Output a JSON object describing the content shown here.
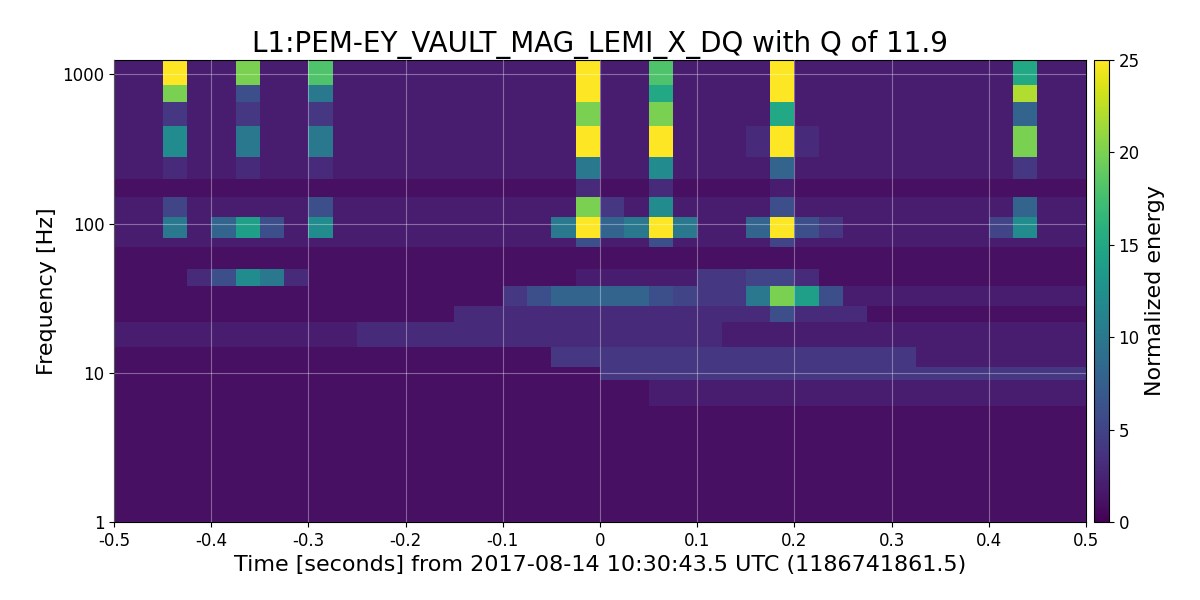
{
  "chart_data": {
    "type": "heatmap",
    "title": "L1:PEM-EY_VAULT_MAG_LEMI_X_DQ with Q of 11.9",
    "x_label": "Time [seconds] from 2017-08-14 10:30:43.5 UTC (1186741861.5)",
    "y_label": "Frequency [Hz]",
    "log": "y",
    "grid": true,
    "color": "viridis",
    "xlim": [
      -0.5,
      0.5
    ],
    "xticks": [
      -0.5,
      -0.4,
      -0.3,
      -0.2,
      -0.1,
      0,
      0.1,
      0.2,
      0.3,
      0.4,
      0.5
    ],
    "ylim": [
      1,
      1250
    ],
    "yticks": [
      1,
      10,
      100,
      1000
    ],
    "color_label": "Normalized energy",
    "color_range": [
      0,
      25
    ],
    "color_ticks": [
      0,
      5,
      10,
      15,
      20,
      25
    ],
    "x_edges": [
      -0.5,
      -0.475,
      -0.45,
      -0.425,
      -0.4,
      -0.375,
      -0.35,
      -0.325,
      -0.3,
      -0.275,
      -0.25,
      -0.225,
      -0.2,
      -0.175,
      -0.15,
      -0.125,
      -0.1,
      -0.075,
      -0.05,
      -0.025,
      0,
      0.025,
      0.05,
      0.075,
      0.1,
      0.125,
      0.15,
      0.175,
      0.2,
      0.225,
      0.25,
      0.275,
      0.3,
      0.325,
      0.35,
      0.375,
      0.4,
      0.425,
      0.45,
      0.475,
      0.5
    ],
    "y_edges": [
      1,
      3,
      6,
      9,
      11,
      15,
      22,
      28,
      38,
      50,
      70,
      80,
      110,
      150,
      200,
      280,
      450,
      650,
      850,
      1250
    ],
    "cells": [
      [
        1,
        1,
        1,
        1,
        1,
        1,
        1,
        1,
        1,
        1,
        1,
        1,
        1,
        1,
        1,
        1,
        1,
        1,
        1,
        1,
        1,
        1,
        1,
        1,
        1,
        1,
        1,
        1,
        1,
        1,
        1,
        1,
        1,
        1,
        1,
        1,
        1,
        1,
        1,
        1
      ],
      [
        1,
        1,
        1,
        1,
        1,
        1,
        1,
        1,
        1,
        1,
        1,
        1,
        1,
        1,
        1,
        1,
        1,
        1,
        1,
        1,
        1,
        1,
        1,
        1,
        1,
        1,
        1,
        1,
        1,
        1,
        1,
        1,
        1,
        1,
        1,
        1,
        1,
        1,
        1,
        1
      ],
      [
        1,
        1,
        1,
        1,
        1,
        1,
        1,
        1,
        1,
        1,
        1,
        1,
        1,
        1,
        1,
        1,
        1,
        1,
        1,
        1,
        1,
        1,
        2,
        2,
        2,
        2,
        2,
        2,
        2,
        2,
        2,
        2,
        2,
        2,
        2,
        2,
        2,
        2,
        2,
        2
      ],
      [
        1,
        1,
        1,
        1,
        1,
        1,
        1,
        1,
        1,
        1,
        1,
        1,
        1,
        1,
        1,
        1,
        1,
        1,
        1,
        1,
        4,
        4,
        4,
        4,
        4,
        4,
        4,
        4,
        4,
        4,
        4,
        4,
        4,
        4,
        4,
        4,
        4,
        4,
        4,
        4
      ],
      [
        1,
        1,
        1,
        1,
        1,
        1,
        1,
        1,
        1,
        1,
        1,
        1,
        1,
        1,
        1,
        1,
        1,
        1,
        4,
        4,
        4,
        4,
        4,
        4,
        4,
        4,
        4,
        4,
        4,
        4,
        4,
        4,
        4,
        2,
        2,
        2,
        2,
        2,
        2,
        2
      ],
      [
        2,
        2,
        2,
        2,
        2,
        2,
        2,
        2,
        2,
        2,
        3,
        3,
        3,
        3,
        3,
        3,
        3,
        3,
        3,
        3,
        3,
        3,
        3,
        3,
        3,
        2,
        2,
        2,
        2,
        2,
        2,
        2,
        2,
        2,
        2,
        2,
        2,
        2,
        2,
        2
      ],
      [
        1,
        1,
        1,
        1,
        1,
        1,
        1,
        1,
        1,
        1,
        1,
        1,
        1,
        1,
        3,
        3,
        3,
        3,
        3,
        3,
        3,
        3,
        3,
        3,
        3,
        3,
        3,
        6,
        3,
        3,
        3,
        1,
        1,
        1,
        1,
        1,
        1,
        1,
        1,
        1
      ],
      [
        1,
        1,
        1,
        1,
        1,
        1,
        1,
        1,
        1,
        1,
        1,
        1,
        1,
        1,
        1,
        1,
        4,
        6,
        8,
        8,
        8,
        8,
        6,
        5,
        4,
        4,
        10,
        20,
        14,
        6,
        2,
        2,
        2,
        2,
        2,
        2,
        2,
        2,
        2,
        2
      ],
      [
        1,
        1,
        1,
        3,
        6,
        12,
        10,
        3,
        1,
        1,
        1,
        1,
        1,
        1,
        1,
        1,
        1,
        1,
        1,
        2,
        2,
        2,
        2,
        2,
        4,
        4,
        5,
        5,
        3,
        1,
        1,
        1,
        1,
        1,
        1,
        1,
        1,
        1,
        1,
        1
      ],
      [
        1,
        1,
        1,
        1,
        1,
        1,
        1,
        1,
        1,
        1,
        1,
        1,
        1,
        1,
        1,
        1,
        1,
        1,
        1,
        1,
        1,
        1,
        1,
        1,
        1,
        1,
        1,
        1,
        1,
        1,
        1,
        1,
        1,
        1,
        1,
        1,
        1,
        1,
        1,
        1
      ],
      [
        2,
        2,
        2,
        2,
        2,
        2,
        2,
        2,
        2,
        2,
        2,
        2,
        2,
        2,
        2,
        2,
        2,
        2,
        2,
        6,
        2,
        2,
        6,
        2,
        2,
        2,
        2,
        5,
        2,
        2,
        2,
        2,
        2,
        2,
        2,
        2,
        2,
        2,
        2,
        2
      ],
      [
        2,
        2,
        10,
        2,
        8,
        14,
        6,
        2,
        12,
        2,
        2,
        2,
        2,
        2,
        2,
        2,
        2,
        2,
        10,
        25,
        8,
        10,
        25,
        10,
        2,
        2,
        8,
        25,
        6,
        4,
        2,
        2,
        2,
        2,
        2,
        2,
        5,
        12,
        2,
        2
      ],
      [
        2,
        2,
        5,
        2,
        2,
        2,
        2,
        2,
        6,
        2,
        2,
        2,
        2,
        2,
        2,
        2,
        2,
        2,
        2,
        20,
        4,
        2,
        12,
        2,
        2,
        2,
        2,
        6,
        2,
        2,
        2,
        2,
        2,
        2,
        2,
        2,
        2,
        8,
        2,
        2
      ],
      [
        1,
        1,
        1,
        1,
        1,
        1,
        1,
        1,
        1,
        1,
        1,
        1,
        1,
        1,
        1,
        1,
        1,
        1,
        1,
        3,
        1,
        1,
        3,
        1,
        1,
        1,
        1,
        2,
        1,
        1,
        1,
        1,
        1,
        1,
        1,
        1,
        1,
        1,
        1,
        1
      ],
      [
        2,
        2,
        3,
        2,
        2,
        3,
        2,
        2,
        3,
        2,
        2,
        2,
        2,
        2,
        2,
        2,
        2,
        2,
        2,
        10,
        2,
        2,
        12,
        2,
        2,
        2,
        2,
        8,
        2,
        2,
        2,
        2,
        2,
        2,
        2,
        2,
        2,
        4,
        2,
        2
      ],
      [
        2,
        2,
        12,
        2,
        2,
        10,
        2,
        2,
        10,
        2,
        2,
        2,
        2,
        2,
        2,
        2,
        2,
        2,
        2,
        25,
        2,
        2,
        25,
        2,
        2,
        2,
        3,
        25,
        3,
        2,
        2,
        2,
        2,
        2,
        2,
        2,
        2,
        20,
        2,
        2
      ],
      [
        2,
        2,
        4,
        2,
        2,
        4,
        2,
        2,
        4,
        2,
        2,
        2,
        2,
        2,
        2,
        2,
        2,
        2,
        2,
        20,
        2,
        2,
        20,
        2,
        2,
        2,
        2,
        15,
        2,
        2,
        2,
        2,
        2,
        2,
        2,
        2,
        2,
        8,
        2,
        2
      ],
      [
        2,
        2,
        20,
        2,
        2,
        6,
        2,
        2,
        10,
        2,
        2,
        2,
        2,
        2,
        2,
        2,
        2,
        2,
        2,
        25,
        2,
        2,
        15,
        2,
        2,
        2,
        2,
        25,
        2,
        2,
        2,
        2,
        2,
        2,
        2,
        2,
        2,
        22,
        2,
        2
      ],
      [
        2,
        2,
        25,
        2,
        2,
        20,
        2,
        2,
        18,
        2,
        2,
        2,
        2,
        2,
        2,
        2,
        2,
        2,
        2,
        25,
        2,
        2,
        18,
        2,
        2,
        2,
        2,
        25,
        2,
        2,
        2,
        2,
        2,
        2,
        2,
        2,
        2,
        15,
        2,
        2
      ]
    ]
  }
}
